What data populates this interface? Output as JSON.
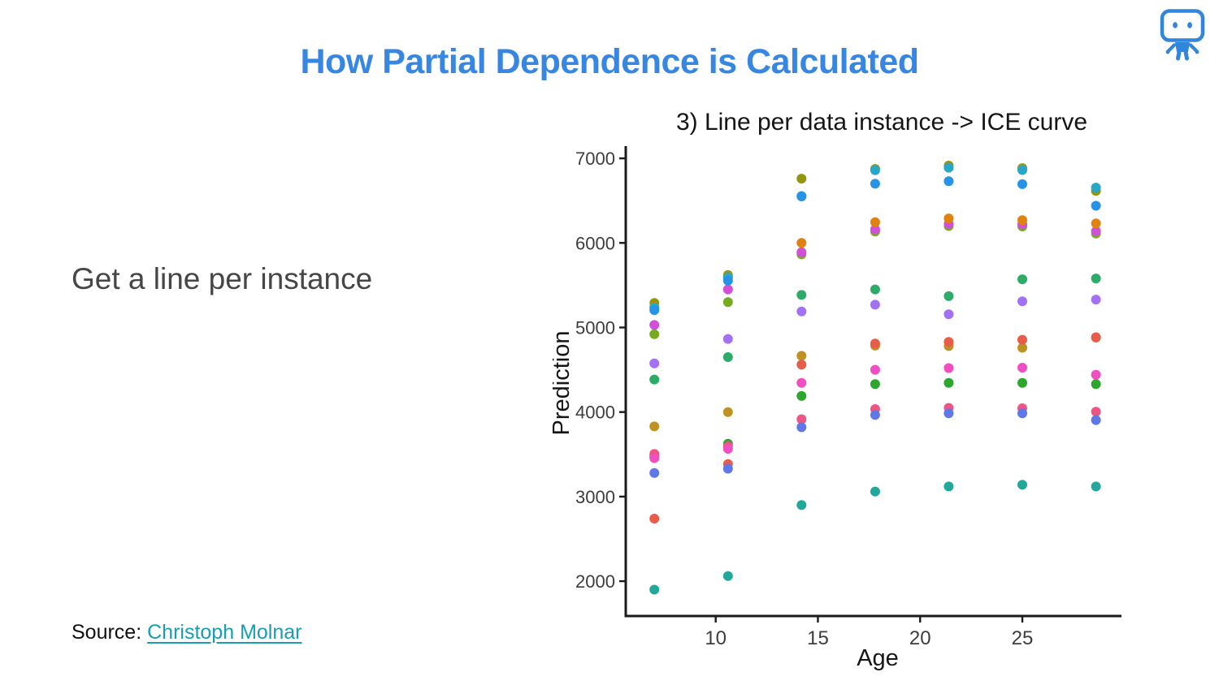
{
  "slide": {
    "title": "How Partial Dependence is Calculated",
    "note": "Get a line per instance",
    "source_label": "Source:",
    "source_link_text": "Christoph Molnar",
    "colors": {
      "title_blue": "#3787e2",
      "note_gray": "#464646",
      "link_teal": "#189db2",
      "robot_blue": "#2f86dc",
      "axis_line": "#1b1b1b",
      "tick_text": "#3d3d3d",
      "chart_text": "#161616"
    }
  },
  "icons": {
    "robot_logo": "robot-logo"
  },
  "chart_data": {
    "type": "scatter",
    "title": "3) Line per data instance -> ICE curve",
    "xlabel": "Age",
    "ylabel": "Prediction",
    "x_ticks": [
      10,
      15,
      20,
      25
    ],
    "y_ticks": [
      2000,
      3000,
      4000,
      5000,
      6000,
      7000
    ],
    "xlim": [
      5.6,
      29.85
    ],
    "ylim": [
      1588,
      7145
    ],
    "grid": false,
    "legend": "none",
    "point_radius": 6,
    "x": [
      7.0,
      10.6,
      14.2,
      17.8,
      21.4,
      25.0,
      28.6
    ],
    "series": [
      {
        "name": "instance-dark-olive",
        "color": "#959610",
        "values": [
          5290,
          5620,
          6760,
          6875,
          6915,
          6885,
          6615
        ]
      },
      {
        "name": "instance-olive-green",
        "color": "#76ab20",
        "values": [
          4920,
          5300,
          5865,
          6135,
          6200,
          6195,
          6110
        ]
      },
      {
        "name": "instance-magenta",
        "color": "#d24fd8",
        "values": [
          5030,
          5450,
          5890,
          6160,
          6225,
          6220,
          6140
        ]
      },
      {
        "name": "instance-orange",
        "color": "#e0820f",
        "values": [
          5240,
          5590,
          6000,
          6245,
          6290,
          6270,
          6230
        ]
      },
      {
        "name": "instance-green",
        "color": "#2ca62e",
        "values": [
          3480,
          3625,
          4190,
          4330,
          4345,
          4345,
          4330
        ]
      },
      {
        "name": "instance-goldenrod",
        "color": "#bd9222",
        "values": [
          3830,
          4000,
          4665,
          4785,
          4780,
          4760,
          4880
        ]
      },
      {
        "name": "instance-salmon",
        "color": "#e85c4a",
        "values": [
          2740,
          3385,
          4560,
          4810,
          4830,
          4855,
          4885
        ]
      },
      {
        "name": "instance-rose",
        "color": "#ee5585",
        "values": [
          3505,
          3595,
          3915,
          4035,
          4050,
          4045,
          4005
        ]
      },
      {
        "name": "instance-periwinkle",
        "color": "#6077e8",
        "values": [
          3280,
          3330,
          3820,
          3965,
          3985,
          3985,
          3905
        ]
      },
      {
        "name": "instance-pink",
        "color": "#ef4fc0",
        "values": [
          3455,
          3565,
          4345,
          4500,
          4520,
          4525,
          4440
        ]
      },
      {
        "name": "instance-cyan",
        "color": "#28a7c6",
        "values": [
          5235,
          5590,
          6555,
          6860,
          6890,
          6862,
          6655
        ]
      },
      {
        "name": "instance-azure",
        "color": "#2693e6",
        "values": [
          5205,
          5555,
          6550,
          6700,
          6730,
          6695,
          6440
        ]
      },
      {
        "name": "instance-sea-green",
        "color": "#2dab69",
        "values": [
          4385,
          4650,
          5385,
          5450,
          5370,
          5570,
          5580
        ]
      },
      {
        "name": "instance-teal",
        "color": "#22a89b",
        "values": [
          1900,
          2060,
          2900,
          3060,
          3120,
          3140,
          3120
        ]
      },
      {
        "name": "instance-orchid",
        "color": "#a272f2",
        "values": [
          4575,
          4865,
          5190,
          5270,
          5155,
          5310,
          5330
        ]
      }
    ]
  }
}
